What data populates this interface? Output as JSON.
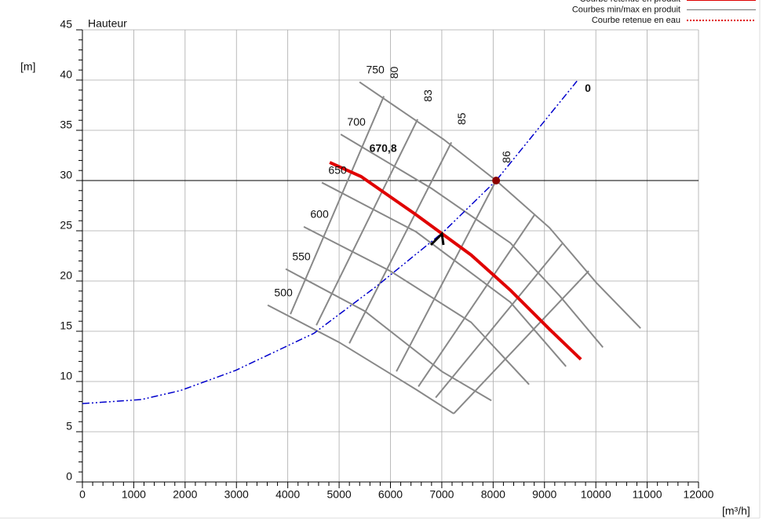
{
  "chart_data": {
    "type": "line",
    "title": "Hauteur",
    "ylabel": "[m]",
    "xlabel": "[m³/h]",
    "xlim": [
      0,
      12000
    ],
    "xticks": [
      0,
      1000,
      2000,
      3000,
      4000,
      5000,
      6000,
      7000,
      8000,
      9000,
      10000,
      11000,
      12000
    ],
    "ylim": [
      0,
      45
    ],
    "yticks": [
      0,
      5,
      10,
      15,
      20,
      25,
      30,
      35,
      40,
      45
    ],
    "grid": true,
    "legend": [
      {
        "name": "Courbe retenue en produit",
        "color": "#e00000",
        "style": "solid",
        "width": 4
      },
      {
        "name": "Courbes min/max en produit",
        "color": "#777777",
        "style": "solid",
        "width": 1
      },
      {
        "name": "Courbe retenue en eau",
        "color": "#e00000",
        "style": "dotted",
        "width": 2
      }
    ],
    "diameter_curves": [
      {
        "name": "500",
        "color": "#888888",
        "x": [
          3609,
          5000,
          6500,
          7232
        ],
        "y": [
          17.6,
          13.9,
          9.2,
          6.8
        ]
      },
      {
        "name": "550",
        "color": "#888888",
        "x": [
          3960,
          5500,
          7000,
          7966
        ],
        "y": [
          21.2,
          17.0,
          11.0,
          8.1
        ]
      },
      {
        "name": "600",
        "color": "#888888",
        "x": [
          4312,
          5994,
          7569,
          8700
        ],
        "y": [
          25.4,
          21.0,
          15.9,
          9.7
        ]
      },
      {
        "name": "650",
        "color": "#888888",
        "x": [
          4664,
          6498,
          8333,
          9419
        ],
        "y": [
          29.8,
          24.9,
          17.9,
          11.5
        ]
      },
      {
        "name": "700",
        "color": "#888888",
        "x": [
          5031,
          6804,
          8333,
          9300,
          10138
        ],
        "y": [
          34.6,
          29.2,
          23.8,
          18.5,
          13.4
        ]
      },
      {
        "name": "750",
        "color": "#888888",
        "x": [
          5398,
          7034,
          8058,
          9098,
          10015,
          10872
        ],
        "y": [
          39.8,
          34.1,
          30.0,
          25.3,
          19.8,
          15.3
        ]
      }
    ],
    "selected_curve": {
      "name": "670,8",
      "color": "#e00000",
      "x": [
        4817,
        5428,
        6498,
        7569,
        8333,
        9098,
        9709
      ],
      "y": [
        31.8,
        30.4,
        26.6,
        22.6,
        19.1,
        15.2,
        12.2
      ]
    },
    "efficiency_curves": [
      {
        "name": "80",
        "color": "#888888",
        "x": [
          4052,
          5872
        ],
        "y": [
          16.7,
          38.4
        ]
      },
      {
        "name": "83",
        "color": "#888888",
        "x": [
          4557,
          6529
        ],
        "y": [
          15.6,
          36.1
        ]
      },
      {
        "name": "85",
        "color": "#888888",
        "x": [
          5199,
          7187
        ],
        "y": [
          13.8,
          33.8
        ]
      },
      {
        "name": "86",
        "color": "#888888",
        "x": [
          6116,
          8058
        ],
        "y": [
          11.0,
          30.0
        ]
      },
      {
        "color": "#888888",
        "x": [
          6544,
          8807
        ],
        "y": [
          9.5,
          26.6
        ]
      },
      {
        "color": "#888888",
        "x": [
          6881,
          9343
        ],
        "y": [
          8.4,
          23.7
        ]
      },
      {
        "color": "#888888",
        "x": [
          7232,
          9862
        ],
        "y": [
          6.8,
          21.0
        ]
      }
    ],
    "system_curve": {
      "name": "0",
      "color": "#0000cc",
      "x": [
        0,
        1147,
        1911,
        2982,
        4511,
        5734,
        7034,
        8058,
        9633
      ],
      "y": [
        7.8,
        8.2,
        9.1,
        11.1,
        14.8,
        19.5,
        24.9,
        30.0,
        39.9
      ]
    },
    "operating_point": {
      "color": "#8b0000",
      "x": 8058,
      "y": 30
    }
  }
}
